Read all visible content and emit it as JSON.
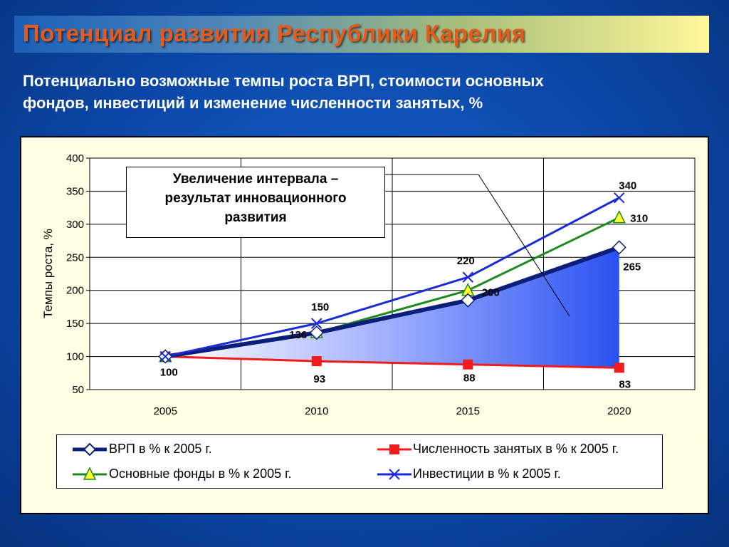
{
  "header": {
    "title": "Потенциал развития Республики Карелия",
    "subtitle_line1": "Потенциально возможные темпы роста ВРП, стоимости основных",
    "subtitle_line2": "фондов, инвестиций и изменение численности занятых, %"
  },
  "chart_data": {
    "type": "line",
    "x": [
      "2005",
      "2010",
      "2015",
      "2020"
    ],
    "ylabel": "Темпы роста, %",
    "ylim": [
      50,
      400
    ],
    "yticks": [
      50,
      100,
      150,
      200,
      250,
      300,
      350,
      400
    ],
    "grid": true,
    "legend_position": "bottom",
    "annotation": {
      "line1": "Увеличение интервала –",
      "line2": "результат инновационного",
      "line3": "развития"
    },
    "series": [
      {
        "name": "ВРП в % к 2005 г.",
        "values": [
          100,
          136,
          185,
          265
        ],
        "color": "#0b1f7a",
        "marker": "diamond",
        "labels": [
          "",
          "",
          "",
          "265"
        ]
      },
      {
        "name": "Численность занятых в % к 2005 г.",
        "values": [
          100,
          93,
          88,
          83
        ],
        "color": "#ee1c1c",
        "marker": "square",
        "labels": [
          "100",
          "93",
          "88",
          "83"
        ]
      },
      {
        "name": "Основные фонды в % к 2005 г.",
        "values": [
          100,
          136,
          200,
          310
        ],
        "color": "#1c8a1c",
        "marker": "triangle",
        "labels": [
          "",
          "136",
          "200",
          "310"
        ]
      },
      {
        "name": "Инвестиции в % к 2005 г.",
        "values": [
          100,
          150,
          220,
          340
        ],
        "color": "#1a2ad6",
        "marker": "x",
        "labels": [
          "",
          "150",
          "220",
          "340"
        ]
      }
    ]
  }
}
